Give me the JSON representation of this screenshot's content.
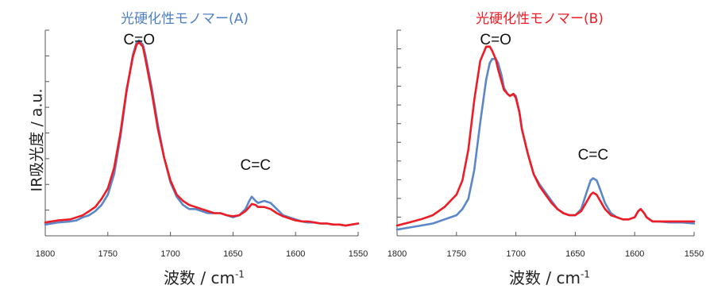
{
  "y_axis_label": "IR吸光度 / a.u.",
  "x_axis_label": {
    "main": "波数 / cm",
    "sup": "-1"
  },
  "colors": {
    "red": "#ee1c25",
    "blue": "#5b86c8",
    "title_a": "#4f7fc3",
    "title_b": "#ee1c25"
  },
  "chart_data": [
    {
      "type": "line",
      "title": "光硬化性モノマー(A)",
      "xlabel": "波数 / cm-1",
      "ylabel": "IR吸光度 / a.u.",
      "xlim": [
        1800,
        1550
      ],
      "x_reversed": true,
      "ylim": [
        0,
        1
      ],
      "x_ticks": [
        "1800",
        "1750",
        "1700",
        "1650",
        "1600",
        "1550"
      ],
      "grid": false,
      "annotations": [
        {
          "text": "C=O",
          "x": 1725,
          "y": 0.93
        },
        {
          "text": "C=C",
          "x": 1632,
          "y": 0.32
        }
      ],
      "series": [
        {
          "color": "#5b86c8",
          "x": [
            1800,
            1790,
            1780,
            1775,
            1770,
            1765,
            1760,
            1755,
            1750,
            1745,
            1740,
            1735,
            1730,
            1727,
            1725,
            1722,
            1720,
            1715,
            1710,
            1705,
            1700,
            1695,
            1690,
            1685,
            1680,
            1675,
            1670,
            1665,
            1660,
            1655,
            1650,
            1645,
            1640,
            1637,
            1635,
            1632,
            1630,
            1625,
            1620,
            1615,
            1610,
            1605,
            1600,
            1595,
            1590,
            1585,
            1580,
            1575,
            1570,
            1565,
            1560,
            1555,
            1550
          ],
          "y": [
            0.055,
            0.065,
            0.07,
            0.075,
            0.09,
            0.1,
            0.12,
            0.15,
            0.2,
            0.3,
            0.48,
            0.7,
            0.88,
            0.94,
            0.95,
            0.93,
            0.88,
            0.72,
            0.54,
            0.38,
            0.26,
            0.19,
            0.15,
            0.13,
            0.13,
            0.12,
            0.11,
            0.11,
            0.11,
            0.1,
            0.09,
            0.1,
            0.13,
            0.17,
            0.19,
            0.17,
            0.16,
            0.17,
            0.16,
            0.13,
            0.1,
            0.09,
            0.08,
            0.07,
            0.065,
            0.065,
            0.06,
            0.06,
            0.055,
            0.055,
            0.05,
            0.055,
            0.06
          ]
        },
        {
          "color": "#ee1c25",
          "x": [
            1800,
            1790,
            1780,
            1775,
            1770,
            1765,
            1760,
            1755,
            1750,
            1745,
            1740,
            1735,
            1730,
            1727,
            1725,
            1722,
            1720,
            1715,
            1710,
            1705,
            1700,
            1695,
            1690,
            1685,
            1680,
            1675,
            1670,
            1665,
            1660,
            1655,
            1650,
            1645,
            1640,
            1637,
            1635,
            1632,
            1630,
            1625,
            1620,
            1615,
            1610,
            1605,
            1600,
            1595,
            1590,
            1585,
            1580,
            1575,
            1570,
            1565,
            1560,
            1555,
            1550
          ],
          "y": [
            0.065,
            0.075,
            0.08,
            0.09,
            0.1,
            0.12,
            0.14,
            0.18,
            0.23,
            0.33,
            0.5,
            0.71,
            0.87,
            0.93,
            0.94,
            0.92,
            0.86,
            0.7,
            0.52,
            0.38,
            0.27,
            0.2,
            0.17,
            0.15,
            0.14,
            0.13,
            0.12,
            0.11,
            0.11,
            0.1,
            0.095,
            0.1,
            0.12,
            0.14,
            0.155,
            0.15,
            0.14,
            0.14,
            0.13,
            0.11,
            0.095,
            0.085,
            0.075,
            0.07,
            0.07,
            0.065,
            0.06,
            0.06,
            0.055,
            0.055,
            0.05,
            0.055,
            0.06
          ]
        }
      ]
    },
    {
      "type": "line",
      "title": "光硬化性モノマー(B)",
      "xlabel": "波数 / cm-1",
      "ylabel": "IR吸光度 / a.u.",
      "xlim": [
        1800,
        1550
      ],
      "x_reversed": true,
      "ylim": [
        0,
        1
      ],
      "x_ticks": [
        "1800",
        "1750",
        "1700",
        "1650",
        "1600",
        "1550"
      ],
      "grid": false,
      "annotations": [
        {
          "text": "C=O",
          "x": 1717,
          "y": 0.93
        },
        {
          "text": "C=C",
          "x": 1635,
          "y": 0.37
        }
      ],
      "series": [
        {
          "color": "#5b86c8",
          "x": [
            1800,
            1790,
            1780,
            1770,
            1760,
            1750,
            1745,
            1740,
            1735,
            1730,
            1725,
            1722,
            1720,
            1717,
            1715,
            1712,
            1710,
            1707,
            1705,
            1702,
            1700,
            1697,
            1695,
            1690,
            1685,
            1680,
            1675,
            1670,
            1665,
            1660,
            1655,
            1650,
            1645,
            1640,
            1637,
            1635,
            1632,
            1630,
            1625,
            1620,
            1615,
            1610,
            1605,
            1600,
            1597,
            1595,
            1592,
            1590,
            1585,
            1580,
            1570,
            1560,
            1550
          ],
          "y": [
            0.03,
            0.04,
            0.05,
            0.06,
            0.08,
            0.1,
            0.13,
            0.18,
            0.32,
            0.55,
            0.76,
            0.84,
            0.86,
            0.86,
            0.84,
            0.78,
            0.72,
            0.69,
            0.68,
            0.69,
            0.68,
            0.6,
            0.52,
            0.4,
            0.3,
            0.25,
            0.21,
            0.17,
            0.13,
            0.11,
            0.1,
            0.1,
            0.13,
            0.22,
            0.27,
            0.28,
            0.27,
            0.24,
            0.16,
            0.11,
            0.09,
            0.08,
            0.08,
            0.09,
            0.12,
            0.13,
            0.11,
            0.09,
            0.07,
            0.07,
            0.065,
            0.065,
            0.06
          ]
        },
        {
          "color": "#ee1c25",
          "x": [
            1800,
            1790,
            1780,
            1770,
            1760,
            1750,
            1745,
            1740,
            1735,
            1730,
            1725,
            1722,
            1720,
            1717,
            1715,
            1712,
            1710,
            1707,
            1705,
            1702,
            1700,
            1697,
            1695,
            1690,
            1685,
            1680,
            1675,
            1670,
            1665,
            1660,
            1655,
            1650,
            1645,
            1640,
            1637,
            1635,
            1632,
            1630,
            1625,
            1620,
            1615,
            1610,
            1605,
            1600,
            1597,
            1595,
            1592,
            1590,
            1585,
            1580,
            1570,
            1560,
            1550
          ],
          "y": [
            0.05,
            0.065,
            0.08,
            0.1,
            0.14,
            0.2,
            0.27,
            0.42,
            0.66,
            0.85,
            0.92,
            0.92,
            0.9,
            0.86,
            0.81,
            0.75,
            0.71,
            0.69,
            0.68,
            0.69,
            0.67,
            0.6,
            0.52,
            0.4,
            0.3,
            0.24,
            0.2,
            0.16,
            0.13,
            0.11,
            0.1,
            0.1,
            0.12,
            0.17,
            0.2,
            0.21,
            0.2,
            0.18,
            0.13,
            0.1,
            0.09,
            0.08,
            0.08,
            0.09,
            0.12,
            0.13,
            0.11,
            0.09,
            0.07,
            0.07,
            0.07,
            0.07,
            0.07
          ]
        }
      ]
    }
  ]
}
